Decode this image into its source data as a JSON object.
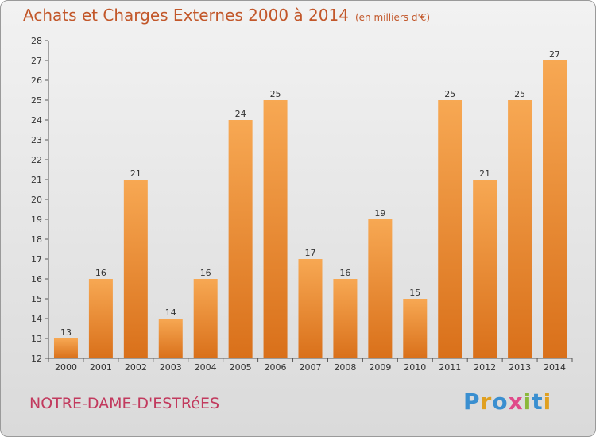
{
  "chart_data": {
    "type": "bar",
    "title": "Achats et Charges Externes 2000 à 2014",
    "subtitle": "(en milliers d'€)",
    "categories": [
      "2000",
      "2001",
      "2002",
      "2003",
      "2004",
      "2005",
      "2006",
      "2007",
      "2008",
      "2009",
      "2010",
      "2011",
      "2012",
      "2013",
      "2014"
    ],
    "values": [
      13,
      16,
      21,
      14,
      16,
      24,
      25,
      17,
      16,
      19,
      15,
      25,
      21,
      25,
      27
    ],
    "xlabel": "",
    "ylabel": "",
    "ylim": [
      12,
      28
    ],
    "yticks": [
      12,
      13,
      14,
      15,
      16,
      17,
      18,
      19,
      20,
      21,
      22,
      23,
      24,
      25,
      26,
      27,
      28
    ],
    "grid": false,
    "bar_color": "#f08a2a"
  },
  "place": "NOTRE-DAME-D'ESTRéES",
  "logo": {
    "text": "Proxiti",
    "letters": [
      {
        "char": "P",
        "color": "#3a8fd0"
      },
      {
        "char": "r",
        "color": "#e0a020"
      },
      {
        "char": "o",
        "color": "#3a8fd0"
      },
      {
        "char": "x",
        "color": "#e04a8a"
      },
      {
        "char": "i",
        "color": "#8ab83a"
      },
      {
        "char": "t",
        "color": "#3a8fd0"
      },
      {
        "char": "i",
        "color": "#e0a020"
      }
    ]
  }
}
